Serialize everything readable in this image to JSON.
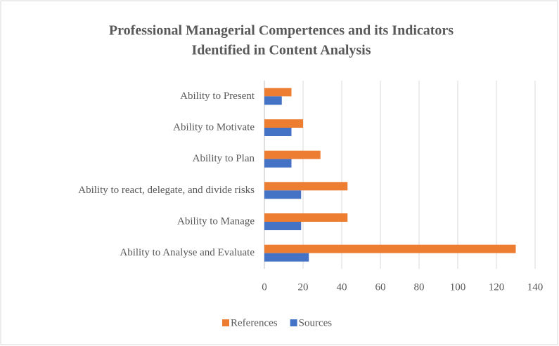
{
  "chart_data": {
    "type": "bar",
    "orientation": "horizontal",
    "title": [
      "Professional Managerial Compertences and its Indicators",
      "Identified in Content Analysis"
    ],
    "categories": [
      "Ability to Present",
      "Ability to Motivate",
      "Ability to Plan",
      "Ability to react, delegate, and divide risks",
      "Ability to Manage",
      "Ability to Analyse and Evaluate"
    ],
    "series": [
      {
        "name": "References",
        "color": "#ed7d31",
        "values": [
          14,
          20,
          29,
          43,
          43,
          130
        ]
      },
      {
        "name": "Sources",
        "color": "#4472c4",
        "values": [
          9,
          14,
          14,
          19,
          19,
          23
        ]
      }
    ],
    "xlim": [
      0,
      140
    ],
    "xticks": [
      0,
      20,
      40,
      60,
      80,
      100,
      120,
      140
    ],
    "grid": true,
    "legend": "bottom"
  }
}
